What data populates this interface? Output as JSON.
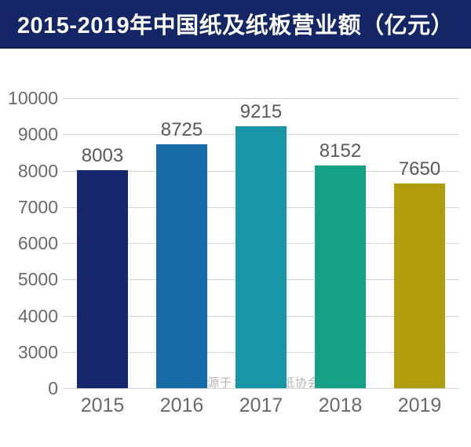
{
  "header": {
    "title": "2015-2019年中国纸及纸板营业额（亿元）",
    "background": "#152666",
    "text_color": "#ffffff"
  },
  "chart_data": {
    "type": "bar",
    "title": "2015-2019年中国纸及纸板营业额（亿元）",
    "categories": [
      "2015",
      "2016",
      "2017",
      "2018",
      "2019"
    ],
    "values": [
      8003,
      8725,
      9215,
      8152,
      7650
    ],
    "bar_colors": [
      "#16276d",
      "#176ba6",
      "#1896a6",
      "#14a185",
      "#b09d0e"
    ],
    "xlabel": "",
    "ylabel": "",
    "y_ticks": [
      0,
      3000,
      4000,
      5000,
      6000,
      7000,
      8000,
      9000,
      10000
    ],
    "ylim": [
      0,
      10000
    ],
    "grid": true,
    "legend": false,
    "gridline_color": "#d4d4d4",
    "value_label_color": "#595959",
    "axis_text_color": "#6a6a6a"
  },
  "footer": {
    "source_note": "（数据来源于：中国造纸协会）",
    "text_color": "#b5b5b5"
  }
}
